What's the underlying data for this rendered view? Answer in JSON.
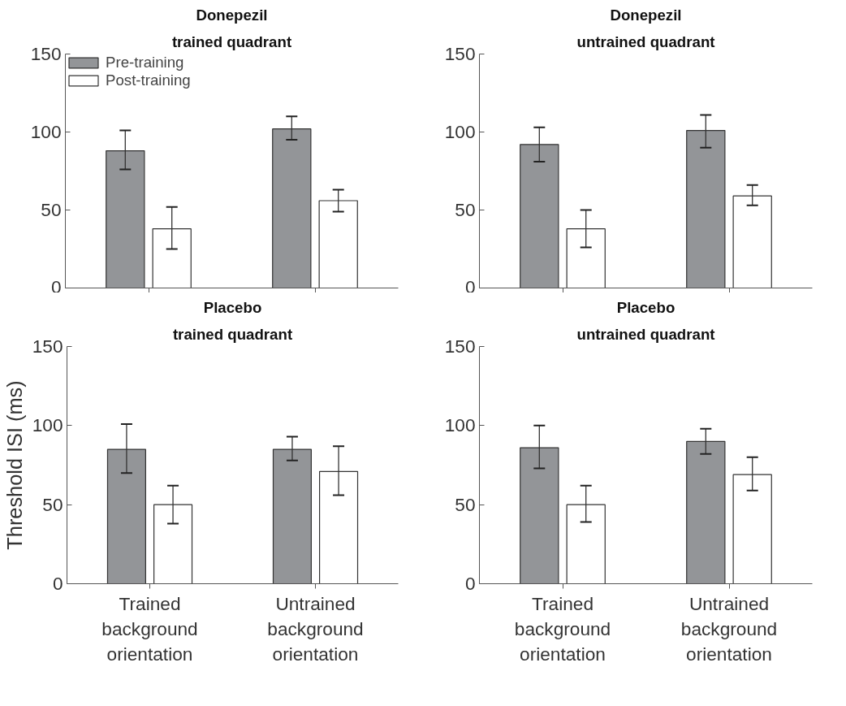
{
  "chart_data": [
    {
      "type": "bar",
      "title": "Donepezil",
      "subtitle": "trained quadrant",
      "categories": [
        null,
        null
      ],
      "ylim": [
        0,
        150
      ],
      "yticks": [
        0,
        50,
        100,
        150
      ],
      "grid": false,
      "legend": "top left",
      "series": [
        {
          "name": "Pre-training",
          "color": "#939598",
          "values": [
            88,
            102
          ],
          "errors": [
            [
              76,
              101
            ],
            [
              95,
              110
            ]
          ]
        },
        {
          "name": "Post-training",
          "color": "#ffffff",
          "values": [
            38,
            56
          ],
          "errors": [
            [
              25,
              52
            ],
            [
              49,
              63
            ]
          ]
        }
      ]
    },
    {
      "type": "bar",
      "title": "Donepezil",
      "subtitle": "untrained quadrant",
      "categories": [
        null,
        null
      ],
      "ylim": [
        0,
        150
      ],
      "yticks": [
        0,
        50,
        100,
        150
      ],
      "grid": false,
      "series": [
        {
          "color": "#939598",
          "values": [
            92,
            101
          ],
          "errors": [
            [
              81,
              103
            ],
            [
              90,
              111
            ]
          ]
        },
        {
          "color": "#ffffff",
          "values": [
            38,
            59
          ],
          "errors": [
            [
              26,
              50
            ],
            [
              53,
              66
            ]
          ]
        }
      ]
    },
    {
      "type": "bar",
      "title": "Placebo",
      "subtitle": "trained quadrant",
      "ylabel": "Threshold ISI (ms)",
      "categories": [
        "Trained background orientation",
        "Untrained background orientation"
      ],
      "ylim": [
        0,
        150
      ],
      "yticks": [
        0,
        50,
        100,
        150
      ],
      "grid": false,
      "series": [
        {
          "color": "#939598",
          "values": [
            85,
            85
          ],
          "errors": [
            [
              70,
              101
            ],
            [
              78,
              93
            ]
          ]
        },
        {
          "color": "#ffffff",
          "values": [
            50,
            71
          ],
          "errors": [
            [
              38,
              62
            ],
            [
              56,
              87
            ]
          ]
        }
      ]
    },
    {
      "type": "bar",
      "title": "Placebo",
      "subtitle": "untrained quadrant",
      "categories": [
        "Trained background orientation",
        "Untrained background orientation"
      ],
      "ylim": [
        0,
        150
      ],
      "yticks": [
        0,
        50,
        100,
        150
      ],
      "grid": false,
      "series": [
        {
          "color": "#939598",
          "values": [
            86,
            90
          ],
          "errors": [
            [
              73,
              100
            ],
            [
              82,
              98
            ]
          ]
        },
        {
          "color": "#ffffff",
          "values": [
            50,
            69
          ],
          "errors": [
            [
              39,
              62
            ],
            [
              59,
              80
            ]
          ]
        }
      ]
    }
  ]
}
